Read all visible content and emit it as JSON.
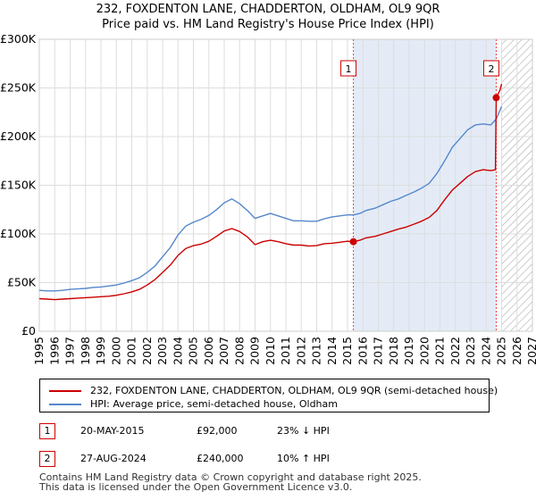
{
  "title_line1": "232, FOXDENTON LANE, CHADDERTON, OLDHAM, OL9 9QR",
  "title_line2": "Price paid vs. HM Land Registry's House Price Index (HPI)",
  "chart_data": {
    "type": "line",
    "x_range": [
      1995,
      2027
    ],
    "ylim": [
      0,
      300000
    ],
    "y_ticks": [
      {
        "value": 0,
        "label": "£0"
      },
      {
        "value": 50000,
        "label": "£50K"
      },
      {
        "value": 100000,
        "label": "£100K"
      },
      {
        "value": 150000,
        "label": "£150K"
      },
      {
        "value": 200000,
        "label": "£200K"
      },
      {
        "value": 250000,
        "label": "£250K"
      },
      {
        "value": 300000,
        "label": "£300K"
      }
    ],
    "x_ticks": [
      "1995",
      "1996",
      "1997",
      "1998",
      "1999",
      "2000",
      "2001",
      "2002",
      "2003",
      "2004",
      "2005",
      "2006",
      "2007",
      "2008",
      "2009",
      "2010",
      "2011",
      "2012",
      "2013",
      "2014",
      "2015",
      "2016",
      "2017",
      "2018",
      "2019",
      "2020",
      "2021",
      "2022",
      "2023",
      "2024",
      "2025",
      "2026",
      "2027"
    ],
    "grid": true,
    "shaded_region": {
      "from": 2015.38,
      "to": 2024.65
    },
    "future_hatch_from": 2025.0,
    "series": [
      {
        "name": "232, FOXDENTON LANE, CHADDERTON, OLDHAM, OL9 9QR (semi-detached house)",
        "color": "#cc0000",
        "points": [
          [
            1995.0,
            33500
          ],
          [
            1995.5,
            33000
          ],
          [
            1996.0,
            32500
          ],
          [
            1996.5,
            33000
          ],
          [
            1997.0,
            33500
          ],
          [
            1997.5,
            34000
          ],
          [
            1998.0,
            34500
          ],
          [
            1998.5,
            35000
          ],
          [
            1999.0,
            35500
          ],
          [
            1999.5,
            36000
          ],
          [
            2000.0,
            37000
          ],
          [
            2000.5,
            38500
          ],
          [
            2001.0,
            40500
          ],
          [
            2001.5,
            43000
          ],
          [
            2002.0,
            47500
          ],
          [
            2002.5,
            53000
          ],
          [
            2003.0,
            60500
          ],
          [
            2003.5,
            68000
          ],
          [
            2004.0,
            78000
          ],
          [
            2004.5,
            85000
          ],
          [
            2005.0,
            88000
          ],
          [
            2005.5,
            89500
          ],
          [
            2006.0,
            92500
          ],
          [
            2006.5,
            97500
          ],
          [
            2007.0,
            103000
          ],
          [
            2007.5,
            105500
          ],
          [
            2008.0,
            102500
          ],
          [
            2008.5,
            97000
          ],
          [
            2009.0,
            89000
          ],
          [
            2009.5,
            92000
          ],
          [
            2010.0,
            93500
          ],
          [
            2010.5,
            92000
          ],
          [
            2011.0,
            90000
          ],
          [
            2011.5,
            88500
          ],
          [
            2012.0,
            88500
          ],
          [
            2012.5,
            87500
          ],
          [
            2013.0,
            88000
          ],
          [
            2013.5,
            90000
          ],
          [
            2014.0,
            90500
          ],
          [
            2014.5,
            91500
          ],
          [
            2015.0,
            92500
          ],
          [
            2015.38,
            92000
          ],
          [
            2015.8,
            93500
          ],
          [
            2016.2,
            96000
          ],
          [
            2016.8,
            97500
          ],
          [
            2017.3,
            100000
          ],
          [
            2017.8,
            102500
          ],
          [
            2018.3,
            105000
          ],
          [
            2018.8,
            107000
          ],
          [
            2019.3,
            110000
          ],
          [
            2019.8,
            113000
          ],
          [
            2020.3,
            117000
          ],
          [
            2020.8,
            124000
          ],
          [
            2021.3,
            135000
          ],
          [
            2021.8,
            145000
          ],
          [
            2022.3,
            152000
          ],
          [
            2022.8,
            159000
          ],
          [
            2023.3,
            164000
          ],
          [
            2023.8,
            166000
          ],
          [
            2024.3,
            165000
          ],
          [
            2024.6,
            166000
          ],
          [
            2024.65,
            240000
          ],
          [
            2024.9,
            248000
          ],
          [
            2025.0,
            254000
          ]
        ]
      },
      {
        "name": "HPI: Average price, semi-detached house, Oldham",
        "color": "#5588cc",
        "points": [
          [
            1995.0,
            42000
          ],
          [
            1995.5,
            41500
          ],
          [
            1996.0,
            41500
          ],
          [
            1996.5,
            42000
          ],
          [
            1997.0,
            43000
          ],
          [
            1997.5,
            43500
          ],
          [
            1998.0,
            44000
          ],
          [
            1998.5,
            45000
          ],
          [
            1999.0,
            45500
          ],
          [
            1999.5,
            46500
          ],
          [
            2000.0,
            47500
          ],
          [
            2000.5,
            49500
          ],
          [
            2001.0,
            52000
          ],
          [
            2001.5,
            55000
          ],
          [
            2002.0,
            60500
          ],
          [
            2002.5,
            67000
          ],
          [
            2003.0,
            76500
          ],
          [
            2003.5,
            86000
          ],
          [
            2004.0,
            99000
          ],
          [
            2004.5,
            108000
          ],
          [
            2005.0,
            112000
          ],
          [
            2005.5,
            115000
          ],
          [
            2006.0,
            119000
          ],
          [
            2006.5,
            125000
          ],
          [
            2007.0,
            132000
          ],
          [
            2007.5,
            136000
          ],
          [
            2008.0,
            131000
          ],
          [
            2008.5,
            124000
          ],
          [
            2009.0,
            116000
          ],
          [
            2009.5,
            118500
          ],
          [
            2010.0,
            121000
          ],
          [
            2010.5,
            118500
          ],
          [
            2011.0,
            116000
          ],
          [
            2011.5,
            113500
          ],
          [
            2012.0,
            113500
          ],
          [
            2012.5,
            113000
          ],
          [
            2013.0,
            113000
          ],
          [
            2013.5,
            115500
          ],
          [
            2014.0,
            117500
          ],
          [
            2014.5,
            118500
          ],
          [
            2015.0,
            119500
          ],
          [
            2015.38,
            119500
          ],
          [
            2015.8,
            121000
          ],
          [
            2016.2,
            124000
          ],
          [
            2016.8,
            126500
          ],
          [
            2017.3,
            130000
          ],
          [
            2017.8,
            133500
          ],
          [
            2018.3,
            136000
          ],
          [
            2018.8,
            139500
          ],
          [
            2019.3,
            143000
          ],
          [
            2019.8,
            147000
          ],
          [
            2020.3,
            152000
          ],
          [
            2020.8,
            162000
          ],
          [
            2021.3,
            175000
          ],
          [
            2021.8,
            189000
          ],
          [
            2022.3,
            198000
          ],
          [
            2022.8,
            207000
          ],
          [
            2023.3,
            212000
          ],
          [
            2023.8,
            213000
          ],
          [
            2024.3,
            212000
          ],
          [
            2024.65,
            218000
          ],
          [
            2025.0,
            231000
          ]
        ]
      }
    ],
    "markers": [
      {
        "label": "1",
        "x": 2015.38,
        "y": 92000
      },
      {
        "label": "2",
        "x": 2024.65,
        "y": 240000
      }
    ]
  },
  "legend": [
    {
      "label": "232, FOXDENTON LANE, CHADDERTON, OLDHAM, OL9 9QR (semi-detached house)",
      "color": "#cc0000"
    },
    {
      "label": "HPI: Average price, semi-detached house, Oldham",
      "color": "#5588cc"
    }
  ],
  "transactions": [
    {
      "num": "1",
      "date": "20-MAY-2015",
      "price": "£92,000",
      "hpi": "23% ↓ HPI"
    },
    {
      "num": "2",
      "date": "27-AUG-2024",
      "price": "£240,000",
      "hpi": "10% ↑ HPI"
    }
  ],
  "footer_line1": "Contains HM Land Registry data © Crown copyright and database right 2025.",
  "footer_line2": "This data is licensed under the Open Government Licence v3.0."
}
